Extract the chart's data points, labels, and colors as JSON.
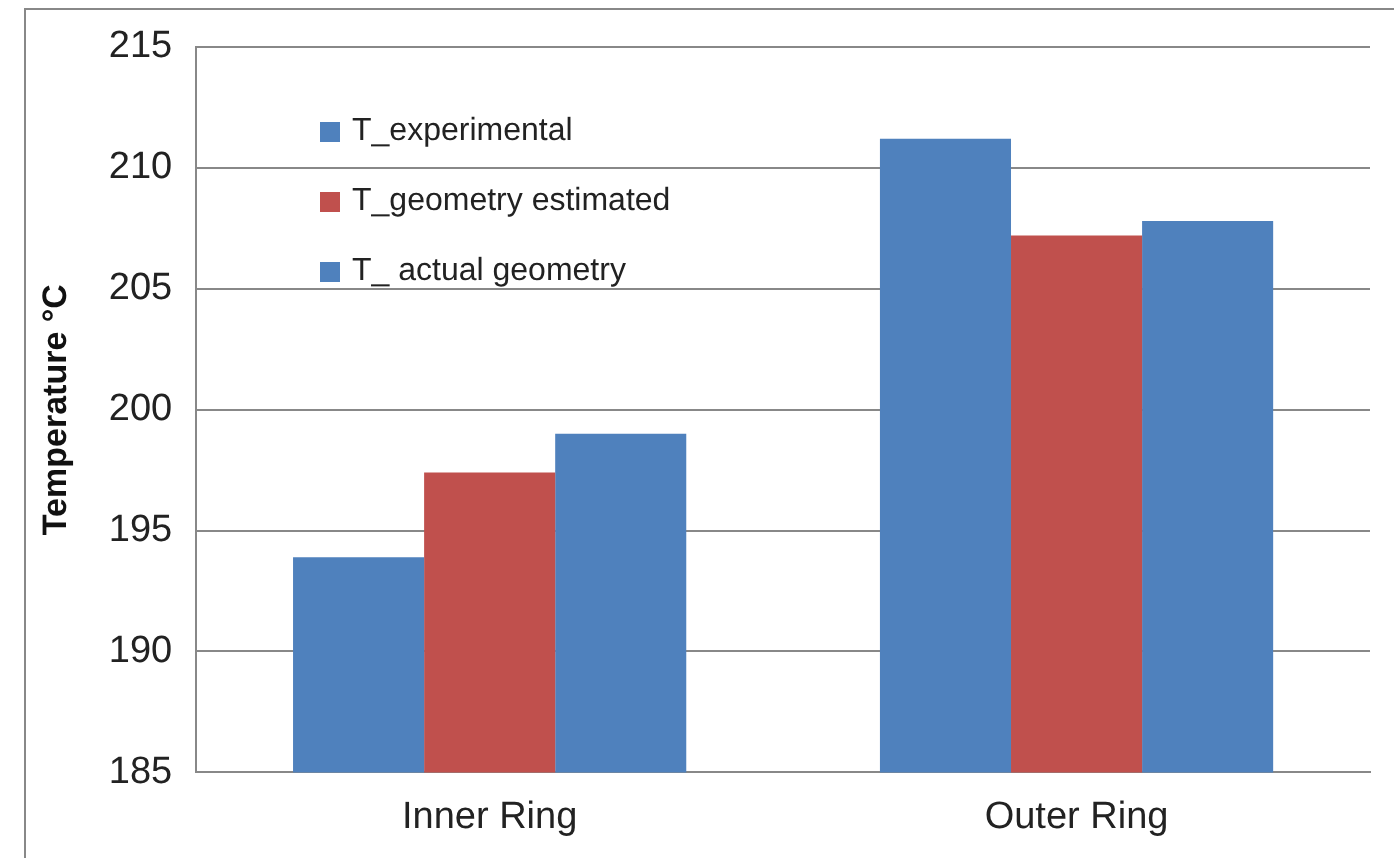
{
  "chart_data": {
    "type": "bar",
    "ylabel": "Temperature °C",
    "categories": [
      "Inner Ring",
      "Outer Ring"
    ],
    "series": [
      {
        "name": "T_experimental",
        "color": "#4f81bd",
        "values": [
          193.9,
          211.2
        ]
      },
      {
        "name": "T_geometry estimated",
        "color": "#c0504d",
        "values": [
          197.4,
          207.2
        ]
      },
      {
        "name": "T_ actual geometry",
        "color": "#4f81bd",
        "values": [
          199.0,
          207.8
        ]
      }
    ],
    "ylim": [
      185,
      215
    ],
    "yticks": [
      185,
      190,
      195,
      200,
      205,
      210,
      215
    ],
    "grid": "y",
    "legend": "top left"
  }
}
